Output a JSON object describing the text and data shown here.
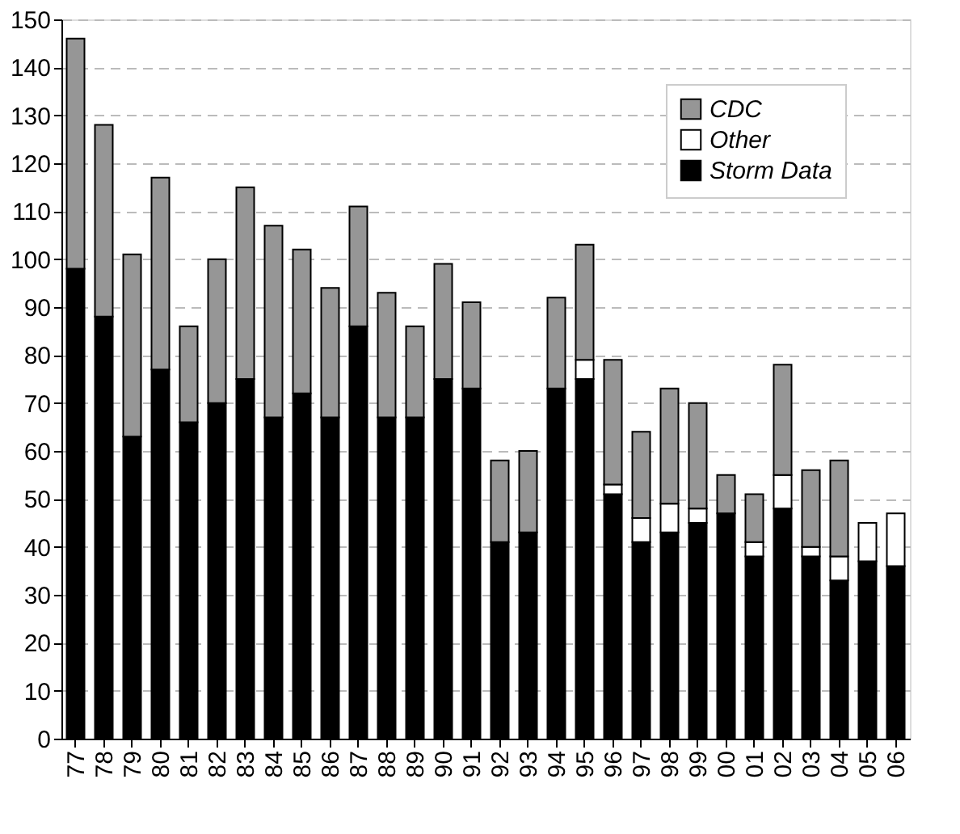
{
  "chart_data": {
    "type": "bar",
    "stacked": true,
    "categories": [
      "77",
      "78",
      "79",
      "80",
      "81",
      "82",
      "83",
      "84",
      "85",
      "86",
      "87",
      "88",
      "89",
      "90",
      "91",
      "92",
      "93",
      "94",
      "95",
      "96",
      "97",
      "98",
      "99",
      "00",
      "01",
      "02",
      "03",
      "04",
      "05",
      "06"
    ],
    "series": [
      {
        "name": "Storm Data",
        "color": "#000000",
        "values": [
          98,
          88,
          63,
          77,
          66,
          70,
          75,
          67,
          72,
          67,
          86,
          67,
          67,
          75,
          73,
          41,
          43,
          73,
          75,
          51,
          41,
          43,
          45,
          47,
          38,
          48,
          38,
          33,
          37,
          36
        ]
      },
      {
        "name": "Other",
        "color": "#ffffff",
        "values": [
          null,
          null,
          null,
          null,
          null,
          null,
          null,
          null,
          null,
          null,
          null,
          null,
          null,
          null,
          null,
          null,
          null,
          null,
          4,
          2,
          5,
          6,
          3,
          null,
          3,
          7,
          2,
          5,
          8,
          11
        ]
      },
      {
        "name": "CDC",
        "color": "#969696",
        "values": [
          48,
          40,
          38,
          40,
          20,
          30,
          40,
          40,
          30,
          27,
          25,
          26,
          19,
          24,
          18,
          17,
          17,
          19,
          24,
          26,
          18,
          24,
          22,
          8,
          10,
          23,
          16,
          20,
          null,
          null
        ]
      }
    ],
    "ylim": [
      0,
      150
    ],
    "yticks": [
      0,
      10,
      20,
      30,
      40,
      50,
      60,
      70,
      80,
      90,
      100,
      110,
      120,
      130,
      140,
      150
    ],
    "grid": "y",
    "legend": "top right"
  }
}
